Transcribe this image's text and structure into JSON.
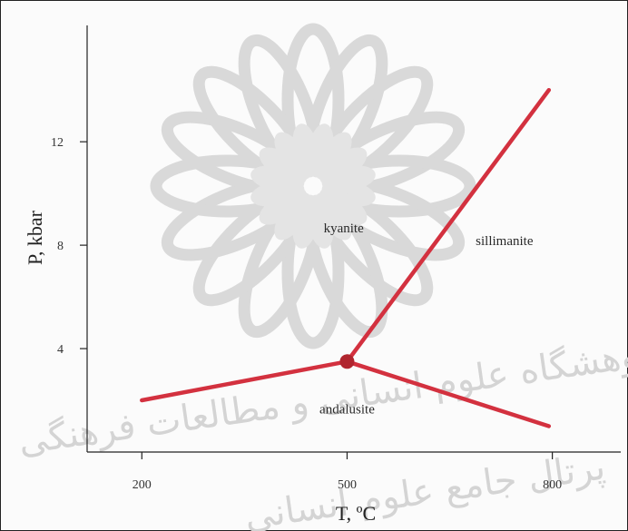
{
  "chart_data": {
    "type": "line",
    "title": "",
    "xlabel": "T, ºC",
    "ylabel": "P, kbar",
    "xlim": [
      120,
      900
    ],
    "ylim": [
      0,
      16.5
    ],
    "xticks": [
      200,
      500,
      800
    ],
    "yticks": [
      4,
      8,
      12
    ],
    "grid": false,
    "line_color": "#d3313f",
    "triple_point_color": "#b0252e",
    "series": [
      {
        "points": [
          [
            200,
            2.0
          ],
          [
            500,
            3.5
          ]
        ]
      },
      {
        "points": [
          [
            500,
            3.5
          ],
          [
            795,
            1.0
          ]
        ]
      },
      {
        "points": [
          [
            500,
            3.5
          ],
          [
            795,
            14.0
          ]
        ]
      }
    ],
    "triple_point": {
      "x": 500,
      "y": 3.5
    },
    "annotations": [
      {
        "text": "kyanite",
        "x": 495,
        "y": 8.5
      },
      {
        "text": "sillimanite",
        "x": 730,
        "y": 8.0
      },
      {
        "text": "andalusite",
        "x": 500,
        "y": 1.5
      }
    ]
  },
  "watermark": {
    "icon": "rosette-watermark-icon",
    "text_lines": [
      "پژوهشگاه علوم انسانی و مطالعات فرهنگی",
      "پرتال جامع علوم انسانی"
    ]
  }
}
